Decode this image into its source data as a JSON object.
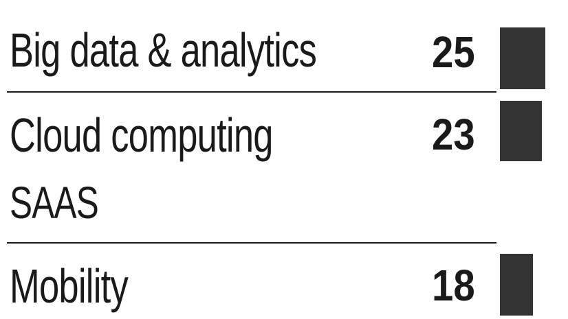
{
  "chart_data": {
    "type": "bar",
    "orientation": "horizontal",
    "categories": [
      "Big data & analytics",
      "Cloud computing SAAS",
      "Mobility"
    ],
    "category_lines": [
      [
        "Big data & analytics"
      ],
      [
        "Cloud computing",
        "SAAS"
      ],
      [
        "Mobility"
      ]
    ],
    "values": [
      25,
      23,
      18
    ],
    "value_labels": [
      "25",
      "23",
      "18"
    ],
    "bar_color": "#333333",
    "grid": false,
    "legend": "none"
  }
}
